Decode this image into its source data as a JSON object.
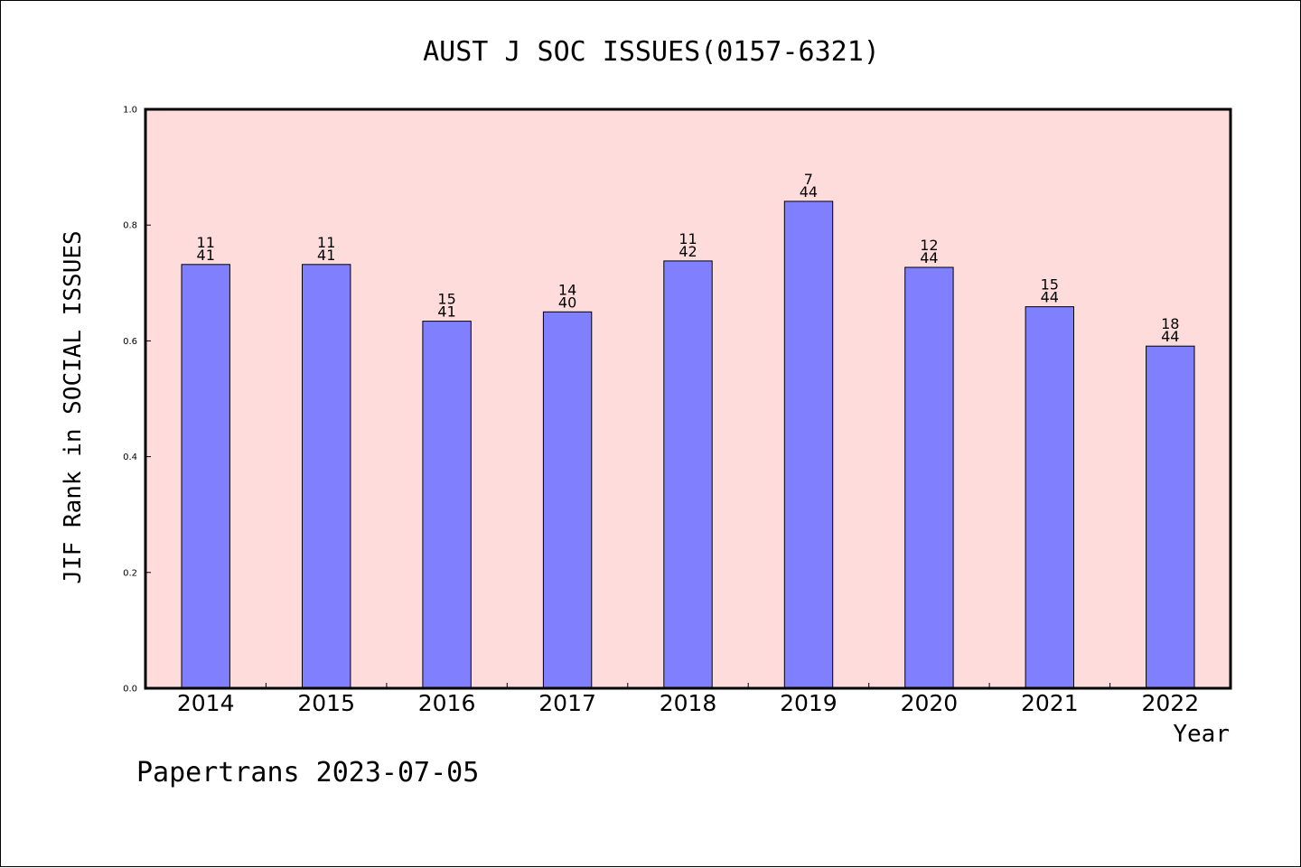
{
  "chart_data": {
    "type": "bar",
    "title": "AUST J SOC ISSUES(0157-6321)",
    "xlabel": "Year",
    "ylabel": "JIF Rank in SOCIAL ISSUES",
    "categories": [
      "2014",
      "2015",
      "2016",
      "2017",
      "2018",
      "2019",
      "2020",
      "2021",
      "2022"
    ],
    "values": [
      0.732,
      0.732,
      0.634,
      0.65,
      0.738,
      0.841,
      0.727,
      0.659,
      0.591
    ],
    "annotations": [
      {
        "rank": "11",
        "total": "41"
      },
      {
        "rank": "11",
        "total": "41"
      },
      {
        "rank": "15",
        "total": "41"
      },
      {
        "rank": "14",
        "total": "40"
      },
      {
        "rank": "11",
        "total": "42"
      },
      {
        "rank": "7",
        "total": "44"
      },
      {
        "rank": "12",
        "total": "44"
      },
      {
        "rank": "15",
        "total": "44"
      },
      {
        "rank": "18",
        "total": "44"
      }
    ],
    "yticks": [
      "0.0",
      "0.2",
      "0.4",
      "0.6",
      "0.8",
      "1.0"
    ],
    "ylim": [
      0,
      1
    ],
    "grid": false,
    "legend": "none",
    "colors": {
      "bar": "#8080ff",
      "plot_background": "#ffdcdc",
      "axis": "#000000"
    }
  },
  "footer": {
    "text": "Papertrans 2023-07-05"
  }
}
